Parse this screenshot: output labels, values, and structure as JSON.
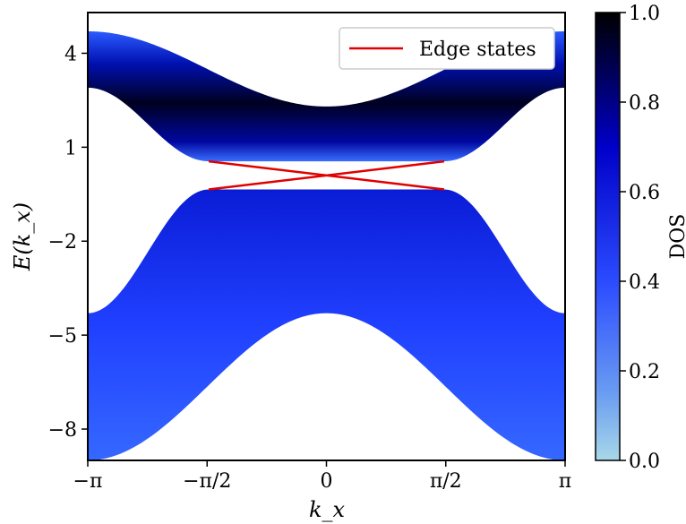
{
  "chart_data": {
    "type": "heatmap",
    "title": "",
    "xlabel": "k_x",
    "ylabel": "E(k_x)",
    "xlim": [
      -3.14159,
      3.14159
    ],
    "ylim": [
      -9.0,
      5.3
    ],
    "x_ticks": [
      {
        "value": -3.14159,
        "label": "−π"
      },
      {
        "value": -1.5708,
        "label": "−π/2"
      },
      {
        "value": 0,
        "label": "0"
      },
      {
        "value": 1.5708,
        "label": "π/2"
      },
      {
        "value": 3.14159,
        "label": "π"
      }
    ],
    "y_ticks": [
      {
        "value": 4,
        "label": "4"
      },
      {
        "value": 1,
        "label": "1"
      },
      {
        "value": -2,
        "label": "−2"
      },
      {
        "value": -5,
        "label": "−5"
      },
      {
        "value": -8,
        "label": "−8"
      }
    ],
    "colorbar": {
      "label": "DOS",
      "range": [
        0.0,
        1.0
      ],
      "ticks": [
        "0.0",
        "0.2",
        "0.4",
        "0.6",
        "0.8",
        "1.0"
      ],
      "colors": [
        "#a8d8e8",
        "#2b4bff",
        "#0000c8",
        "#000000"
      ]
    },
    "bands": {
      "upper": {
        "inner_edge_at_pi": 2.9,
        "inner_edge_at_0": 1.9,
        "inner_edge_at_gap": 0.55,
        "outer_edge_at_pi": 4.7,
        "outer_edge_at_0": 2.3
      },
      "lower": {
        "inner_edge_at_pi": -4.3,
        "inner_edge_at_0": -4.1,
        "inner_edge_at_gap": -0.35,
        "outer_edge_at_pi": -9.0,
        "outer_edge_at_0": -4.3
      },
      "gap_k": 1.55
    },
    "series": [
      {
        "name": "Edge states",
        "color": "#e00000",
        "lines": [
          {
            "x": [
              -1.55,
              1.55
            ],
            "y": [
              0.55,
              -0.35
            ]
          },
          {
            "x": [
              -1.55,
              1.55
            ],
            "y": [
              -0.35,
              0.55
            ]
          }
        ]
      }
    ],
    "legend": {
      "position": "top-right",
      "entries": [
        "Edge states"
      ]
    }
  }
}
